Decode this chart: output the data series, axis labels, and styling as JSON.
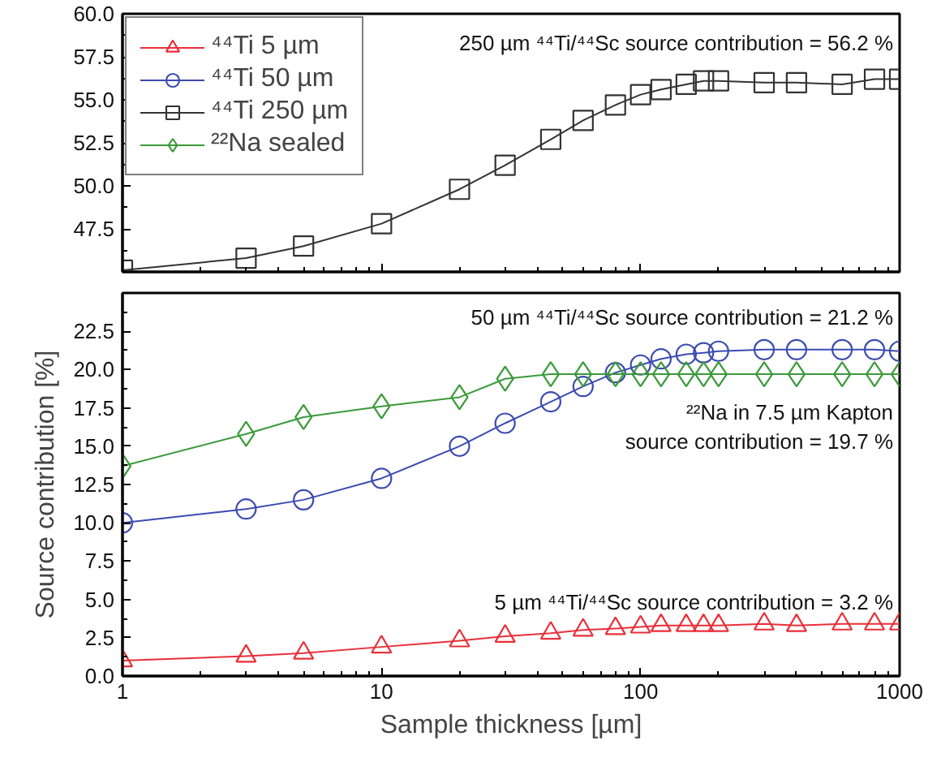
{
  "chart_data": [
    {
      "type": "line",
      "xlim": [
        1,
        1000
      ],
      "xticks": [
        1,
        10,
        100,
        1000
      ],
      "log": "x",
      "ylim": [
        45,
        60
      ],
      "yticks": [
        47.5,
        {
          "value": 50,
          "label": "50.0"
        },
        52.5,
        {
          "value": 55,
          "label": "55.0"
        },
        57.5,
        {
          "value": 60,
          "label": "60.0"
        }
      ],
      "tick_labels": "y",
      "legend": "top left",
      "grid": false,
      "annotations": [
        "250 µm ⁴⁴Ti/⁴⁴Sc source contribution = 56.2 %"
      ],
      "series": [
        {
          "name": "⁴⁴Ti 250 µm",
          "color": "#333333",
          "marker": "square",
          "x": [
            1,
            3,
            5,
            10,
            20,
            30,
            45,
            60,
            80,
            100,
            120,
            150,
            175,
            200,
            300,
            400,
            600,
            800,
            1000
          ],
          "values": [
            45.1,
            45.8,
            46.5,
            47.8,
            49.8,
            51.2,
            52.7,
            53.8,
            54.7,
            55.3,
            55.6,
            55.9,
            56.1,
            56.1,
            56.0,
            56.0,
            55.9,
            56.2,
            56.2
          ]
        }
      ]
    },
    {
      "type": "line",
      "xlim": [
        1,
        1000
      ],
      "xticks": [
        1,
        10,
        100,
        1000
      ],
      "log": "x",
      "ylim": [
        0,
        25
      ],
      "yticks": [
        {
          "value": 0,
          "label": "0.0"
        },
        2.5,
        {
          "value": 5,
          "label": "5.0"
        },
        7.5,
        {
          "value": 10,
          "label": "10.0"
        },
        12.5,
        {
          "value": 15,
          "label": "15.0"
        },
        17.5,
        {
          "value": 20,
          "label": "20.0"
        },
        22.5
      ],
      "xlabel": "Sample thickness [µm]",
      "ylabel": "Source contribution [%]",
      "grid": false,
      "legend": "top left",
      "annotations": [
        "50 µm ⁴⁴Ti/⁴⁴Sc source contribution = 21.2 %",
        "²²Na in 7.5 µm Kapton\nsource contribution = 19.7 %",
        "5 µm ⁴⁴Ti/⁴⁴Sc source contribution = 3.2 %"
      ],
      "series": [
        {
          "name": "⁴⁴Ti 5 µm",
          "color": "#e8303a",
          "marker": "triangle",
          "x": [
            1,
            3,
            5,
            10,
            20,
            30,
            45,
            60,
            80,
            100,
            120,
            150,
            175,
            200,
            300,
            400,
            600,
            800,
            1000
          ],
          "values": [
            1.0,
            1.3,
            1.5,
            1.9,
            2.3,
            2.6,
            2.8,
            3.0,
            3.1,
            3.2,
            3.3,
            3.3,
            3.3,
            3.3,
            3.4,
            3.3,
            3.4,
            3.4,
            3.4
          ]
        },
        {
          "name": "⁴⁴Ti 50 µm",
          "color": "#3b4bb0",
          "marker": "circle",
          "x": [
            1,
            3,
            5,
            10,
            20,
            30,
            45,
            60,
            80,
            100,
            120,
            150,
            175,
            200,
            300,
            400,
            600,
            800,
            1000
          ],
          "values": [
            10.0,
            10.9,
            11.5,
            12.9,
            15.0,
            16.5,
            17.9,
            18.9,
            19.8,
            20.3,
            20.7,
            21.0,
            21.1,
            21.2,
            21.3,
            21.3,
            21.3,
            21.3,
            21.2
          ]
        },
        {
          "name": "²²Na sealed",
          "color": "#3a9a3a",
          "marker": "diamond",
          "x": [
            1,
            3,
            5,
            10,
            20,
            30,
            45,
            60,
            80,
            100,
            120,
            150,
            175,
            200,
            300,
            400,
            600,
            800,
            1000
          ],
          "values": [
            13.7,
            15.8,
            16.9,
            17.6,
            18.2,
            19.4,
            19.7,
            19.7,
            19.7,
            19.7,
            19.7,
            19.7,
            19.7,
            19.7,
            19.7,
            19.7,
            19.7,
            19.7,
            19.7
          ]
        }
      ]
    }
  ]
}
